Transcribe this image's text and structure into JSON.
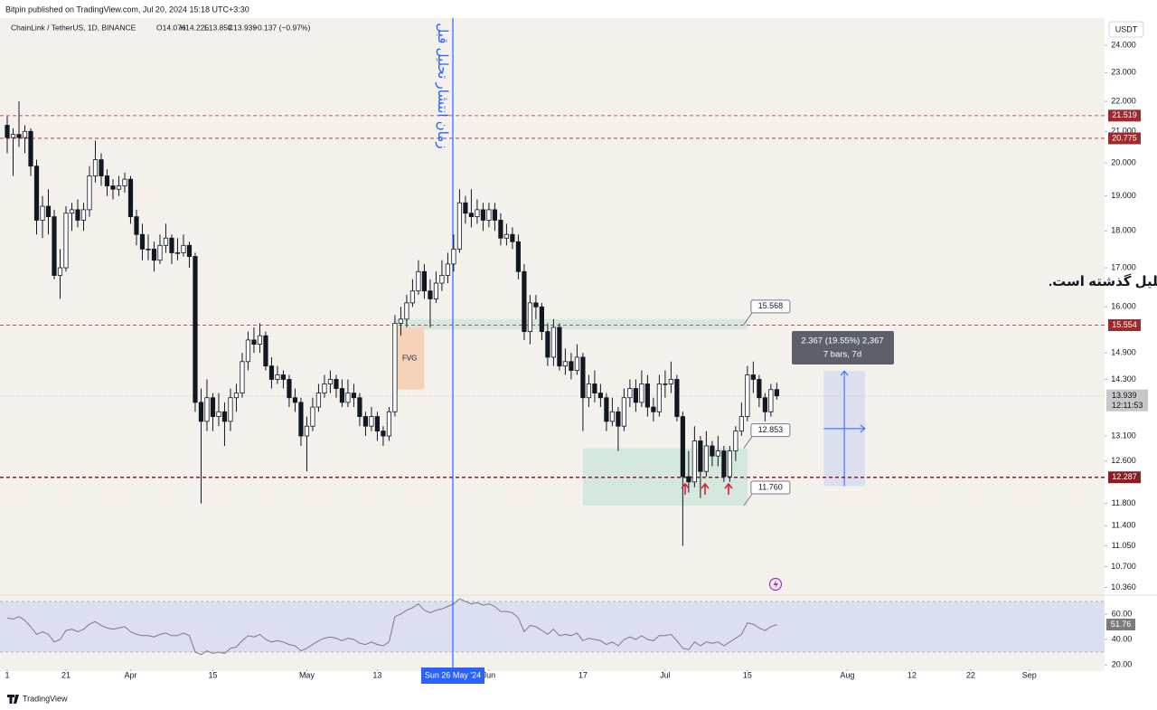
{
  "header": {
    "published": "Bitpin published on TradingView.com, Jul 20, 2024 15:18 UTC+3:30",
    "symbol": "ChainLink / TetherUS, 1D, BINANCE",
    "ohlc": [
      "O14.076",
      "H14.225",
      "L13.859",
      "C13.939"
    ],
    "change": "−0.137 (−0.97%)",
    "currency": "USDT"
  },
  "chart_data": {
    "type": "candlestick",
    "log_scale": true,
    "up_color": "#ffffff",
    "down_color": "#131722",
    "wick_color": "#131722",
    "candles": [
      [
        21.2,
        21.5,
        20.3,
        20.8
      ],
      [
        20.8,
        21.1,
        19.6,
        20.9
      ],
      [
        20.9,
        22.0,
        20.5,
        20.8
      ],
      [
        20.8,
        21.2,
        20.3,
        21.0
      ],
      [
        21.0,
        21.1,
        19.6,
        19.9
      ],
      [
        19.9,
        20.1,
        17.9,
        18.3
      ],
      [
        18.3,
        19.0,
        17.8,
        18.7
      ],
      [
        18.7,
        19.2,
        17.9,
        18.4
      ],
      [
        18.4,
        18.6,
        16.7,
        16.8
      ],
      [
        16.8,
        17.5,
        16.2,
        17.0
      ],
      [
        17.0,
        18.7,
        16.9,
        18.5
      ],
      [
        18.5,
        18.8,
        18.0,
        18.6
      ],
      [
        18.6,
        18.9,
        18.1,
        18.3
      ],
      [
        18.3,
        18.8,
        18.0,
        18.6
      ],
      [
        18.6,
        19.9,
        18.4,
        19.6
      ],
      [
        19.6,
        20.7,
        19.4,
        20.1
      ],
      [
        20.1,
        20.3,
        19.3,
        19.6
      ],
      [
        19.6,
        19.8,
        19.0,
        19.3
      ],
      [
        19.3,
        19.5,
        18.9,
        19.2
      ],
      [
        19.2,
        19.6,
        19.0,
        19.3
      ],
      [
        19.3,
        19.7,
        19.1,
        19.5
      ],
      [
        19.5,
        19.6,
        18.2,
        18.4
      ],
      [
        18.4,
        18.6,
        17.6,
        17.9
      ],
      [
        17.9,
        18.2,
        17.2,
        17.5
      ],
      [
        17.5,
        17.9,
        17.2,
        17.5
      ],
      [
        17.5,
        17.7,
        16.9,
        17.2
      ],
      [
        17.2,
        17.9,
        17.1,
        17.6
      ],
      [
        17.6,
        18.2,
        17.4,
        17.8
      ],
      [
        17.8,
        17.9,
        17.1,
        17.4
      ],
      [
        17.4,
        17.8,
        17.2,
        17.4
      ],
      [
        17.4,
        17.9,
        17.3,
        17.6
      ],
      [
        17.6,
        17.7,
        17.0,
        17.3
      ],
      [
        17.3,
        17.4,
        13.6,
        13.8
      ],
      [
        13.8,
        14.1,
        11.8,
        13.4
      ],
      [
        13.4,
        14.3,
        13.2,
        13.9
      ],
      [
        13.9,
        14.0,
        13.2,
        13.5
      ],
      [
        13.5,
        14.0,
        13.3,
        13.6
      ],
      [
        13.6,
        13.8,
        12.9,
        13.4
      ],
      [
        13.4,
        14.1,
        13.2,
        13.9
      ],
      [
        13.9,
        14.2,
        13.6,
        14.0
      ],
      [
        14.0,
        14.9,
        13.9,
        14.7
      ],
      [
        14.7,
        15.4,
        14.5,
        15.2
      ],
      [
        15.2,
        15.5,
        14.9,
        15.1
      ],
      [
        15.1,
        15.6,
        14.9,
        15.3
      ],
      [
        15.3,
        15.4,
        14.5,
        14.6
      ],
      [
        14.6,
        14.8,
        14.1,
        14.3
      ],
      [
        14.3,
        14.6,
        14.2,
        14.4
      ],
      [
        14.4,
        14.5,
        14.1,
        14.3
      ],
      [
        14.3,
        14.4,
        13.7,
        13.9
      ],
      [
        13.9,
        14.1,
        13.6,
        13.8
      ],
      [
        13.8,
        13.9,
        12.9,
        13.1
      ],
      [
        13.1,
        13.5,
        12.4,
        13.3
      ],
      [
        13.3,
        13.9,
        13.2,
        13.7
      ],
      [
        13.7,
        14.2,
        13.6,
        14.0
      ],
      [
        14.0,
        14.4,
        13.9,
        14.2
      ],
      [
        14.2,
        14.5,
        14.0,
        14.3
      ],
      [
        14.3,
        14.4,
        13.9,
        14.1
      ],
      [
        14.1,
        14.3,
        13.7,
        13.8
      ],
      [
        13.8,
        14.3,
        13.7,
        14.0
      ],
      [
        14.0,
        14.2,
        13.7,
        13.9
      ],
      [
        13.9,
        14.0,
        13.3,
        13.5
      ],
      [
        13.5,
        13.6,
        13.1,
        13.3
      ],
      [
        13.3,
        13.7,
        13.2,
        13.5
      ],
      [
        13.5,
        13.6,
        13.0,
        13.2
      ],
      [
        13.2,
        13.3,
        12.9,
        13.1
      ],
      [
        13.1,
        13.7,
        13.0,
        13.6
      ],
      [
        13.6,
        15.8,
        13.5,
        15.6
      ],
      [
        15.6,
        16.0,
        15.3,
        15.7
      ],
      [
        15.7,
        16.3,
        15.5,
        16.1
      ],
      [
        16.1,
        16.7,
        16.0,
        16.4
      ],
      [
        16.4,
        17.2,
        16.3,
        16.9
      ],
      [
        16.9,
        17.1,
        16.2,
        16.4
      ],
      [
        16.4,
        16.7,
        15.5,
        16.2
      ],
      [
        16.2,
        16.9,
        16.1,
        16.6
      ],
      [
        16.6,
        17.2,
        16.4,
        16.8
      ],
      [
        16.8,
        17.4,
        16.6,
        17.1
      ],
      [
        17.1,
        17.9,
        16.9,
        17.5
      ],
      [
        17.5,
        19.2,
        17.4,
        18.8
      ],
      [
        18.8,
        19.0,
        18.2,
        18.5
      ],
      [
        18.5,
        19.2,
        18.1,
        18.4
      ],
      [
        18.4,
        18.9,
        18.2,
        18.6
      ],
      [
        18.6,
        18.8,
        18.0,
        18.3
      ],
      [
        18.3,
        18.8,
        18.1,
        18.6
      ],
      [
        18.6,
        18.8,
        18.0,
        18.3
      ],
      [
        18.3,
        18.5,
        17.6,
        17.8
      ],
      [
        17.8,
        18.2,
        17.6,
        17.9
      ],
      [
        17.9,
        18.1,
        17.5,
        17.7
      ],
      [
        17.7,
        17.9,
        16.7,
        16.9
      ],
      [
        16.9,
        17.1,
        15.2,
        15.4
      ],
      [
        15.4,
        16.3,
        15.1,
        16.1
      ],
      [
        16.1,
        16.3,
        15.7,
        16.0
      ],
      [
        16.0,
        16.1,
        15.2,
        15.4
      ],
      [
        15.4,
        15.6,
        14.6,
        14.8
      ],
      [
        14.8,
        15.7,
        14.6,
        15.5
      ],
      [
        15.5,
        15.6,
        14.5,
        14.6
      ],
      [
        14.6,
        15.0,
        14.4,
        14.7
      ],
      [
        14.7,
        14.9,
        14.3,
        14.5
      ],
      [
        14.5,
        15.1,
        14.4,
        14.8
      ],
      [
        14.8,
        14.9,
        13.2,
        13.9
      ],
      [
        13.9,
        14.4,
        13.7,
        14.2
      ],
      [
        14.2,
        14.5,
        13.8,
        14.0
      ],
      [
        14.0,
        14.2,
        13.7,
        13.9
      ],
      [
        13.9,
        14.0,
        13.2,
        13.4
      ],
      [
        13.4,
        13.9,
        13.3,
        13.6
      ],
      [
        13.6,
        13.7,
        12.8,
        13.3
      ],
      [
        13.3,
        14.1,
        13.2,
        13.9
      ],
      [
        13.9,
        14.3,
        13.7,
        14.1
      ],
      [
        14.1,
        14.3,
        13.6,
        13.8
      ],
      [
        13.8,
        14.5,
        13.7,
        14.2
      ],
      [
        14.2,
        14.4,
        13.5,
        13.7
      ],
      [
        13.7,
        13.9,
        13.4,
        13.6
      ],
      [
        13.6,
        14.4,
        13.5,
        14.2
      ],
      [
        14.2,
        14.5,
        13.9,
        14.2
      ],
      [
        14.2,
        14.7,
        14.0,
        14.3
      ],
      [
        14.3,
        14.4,
        13.4,
        13.5
      ],
      [
        13.5,
        13.6,
        11.05,
        12.3
      ],
      [
        12.3,
        12.8,
        12.0,
        12.2
      ],
      [
        12.2,
        13.3,
        12.1,
        13.0
      ],
      [
        13.0,
        13.1,
        11.9,
        12.4
      ],
      [
        12.4,
        13.2,
        12.3,
        12.9
      ],
      [
        12.9,
        13.0,
        12.5,
        12.7
      ],
      [
        12.7,
        13.1,
        12.5,
        12.8
      ],
      [
        12.8,
        12.9,
        12.2,
        12.3
      ],
      [
        12.3,
        12.9,
        12.2,
        12.8
      ],
      [
        12.8,
        13.3,
        12.6,
        13.2
      ],
      [
        13.2,
        13.8,
        13.1,
        13.5
      ],
      [
        13.5,
        14.6,
        13.4,
        14.4
      ],
      [
        14.4,
        14.7,
        14.0,
        14.3
      ],
      [
        14.3,
        14.4,
        13.7,
        13.9
      ],
      [
        13.9,
        14.0,
        13.4,
        13.6
      ],
      [
        13.6,
        14.2,
        13.5,
        14.076
      ],
      [
        14.076,
        14.225,
        13.859,
        13.939
      ]
    ],
    "xlim": [
      0,
      186.8
    ],
    "xticks": [
      {
        "value": 0,
        "label": "1"
      },
      {
        "value": 10,
        "label": "21"
      },
      {
        "value": 21,
        "label": "Apr"
      },
      {
        "value": 35,
        "label": "15"
      },
      {
        "value": 51,
        "label": "May"
      },
      {
        "value": 63,
        "label": "13"
      },
      {
        "value": 82,
        "label": "Jun"
      },
      {
        "value": 98,
        "label": "17"
      },
      {
        "value": 112,
        "label": "Jul"
      },
      {
        "value": 126,
        "label": "15"
      },
      {
        "value": 143,
        "label": "Aug"
      },
      {
        "value": 154,
        "label": "12"
      },
      {
        "value": 164,
        "label": "22"
      },
      {
        "value": 174,
        "label": "Sep"
      }
    ],
    "ylim": [
      10.28,
      25.03
    ],
    "yticks": [
      {
        "value": 24,
        "label": "24.000"
      },
      {
        "value": 23,
        "label": "23.000"
      },
      {
        "value": 22,
        "label": "22.000"
      },
      {
        "value": 21,
        "label": "21.000"
      },
      {
        "value": 20,
        "label": "20.000"
      },
      {
        "value": 19,
        "label": "19.000"
      },
      {
        "value": 18,
        "label": "18.000"
      },
      {
        "value": 17,
        "label": "17.000"
      },
      {
        "value": 16,
        "label": "16.000"
      },
      {
        "value": 14.9,
        "label": "14.900"
      },
      {
        "value": 14.3,
        "label": "14.300"
      },
      {
        "value": 13.1,
        "label": "13.100"
      },
      {
        "value": 12.6,
        "label": "12.600"
      },
      {
        "value": 11.8,
        "label": "11.800"
      },
      {
        "value": 11.4,
        "label": "11.400"
      },
      {
        "value": 11.05,
        "label": "11.050"
      },
      {
        "value": 10.7,
        "label": "10.700"
      },
      {
        "value": 10.36,
        "label": "10.360"
      }
    ],
    "levels": [
      {
        "value": 21.519,
        "color": "#9e2a2b",
        "width": 0.8
      },
      {
        "value": 20.775,
        "color": "#9e2a2b",
        "width": 0.8
      },
      {
        "value": 15.554,
        "color": "#9e2a2b",
        "width": 0.8
      },
      {
        "value": 12.287,
        "color": "#8c1c22",
        "width": 1.4
      }
    ],
    "current": {
      "value": 13.939,
      "countdown": "12:11:53",
      "color": "#c7c7c7"
    },
    "zones": [
      {
        "low": 15.45,
        "high": 15.7,
        "start": 66,
        "end": 126,
        "color": "#cfe6dc"
      },
      {
        "low": 11.76,
        "high": 12.853,
        "start": 98,
        "end": 126,
        "color": "#cfe6dc"
      }
    ],
    "fvg": {
      "label": "FVG",
      "low": 14.08,
      "high": 15.5,
      "start": 66,
      "end": 71,
      "color": "#f6d3b8"
    },
    "callouts": [
      15.568,
      12.853,
      {
        "value": 11.76,
        "label": "11.760"
      }
    ],
    "measure": {
      "low": 12.12,
      "high": 14.487,
      "start": 139,
      "end": 146,
      "label": "2.367 (19.55%) 2,367",
      "sublabel": "7 bars, 7d",
      "color": "#2962ff"
    },
    "crosshair_label": "Sun 26 May '24",
    "note": "* تمامی نواحی و سطوحی که در چارت مشاهده می‌کنید مربوط به تحلیل گذشته است.",
    "vertical_note": "زمان انتشار تحلیل قبل",
    "rsi": {
      "type": "line",
      "color": "#7b7b7b",
      "band": [
        30,
        70
      ],
      "band_color": "#dcdff2",
      "values": [
        57,
        56,
        58,
        55,
        50,
        44,
        46,
        44,
        38,
        40,
        47,
        48,
        46,
        48,
        52,
        54,
        51,
        49,
        48,
        49,
        50,
        46,
        44,
        43,
        43,
        42,
        44,
        45,
        43,
        43,
        45,
        43,
        30,
        28,
        31,
        29,
        30,
        29,
        33,
        34,
        39,
        43,
        42,
        44,
        40,
        38,
        39,
        38,
        36,
        35,
        31,
        33,
        36,
        39,
        41,
        42,
        41,
        39,
        41,
        40,
        37,
        36,
        38,
        36,
        35,
        38,
        58,
        60,
        63,
        65,
        68,
        63,
        61,
        63,
        64,
        66,
        68,
        72,
        70,
        68,
        69,
        67,
        68,
        66,
        62,
        62,
        61,
        57,
        46,
        51,
        50,
        47,
        44,
        48,
        43,
        44,
        43,
        45,
        39,
        41,
        40,
        39,
        36,
        38,
        35,
        40,
        42,
        40,
        43,
        40,
        39,
        43,
        43,
        44,
        39,
        33,
        32,
        38,
        35,
        38,
        37,
        38,
        35,
        38,
        41,
        44,
        53,
        52,
        49,
        47,
        50,
        51.76
      ],
      "ylim": [
        16.4,
        72.1
      ],
      "yticks": [
        {
          "value": 60,
          "label": "60.00"
        },
        {
          "value": 40,
          "label": "40.00"
        },
        {
          "value": 20,
          "label": "20.00"
        }
      ]
    }
  },
  "footer": "TradingView"
}
